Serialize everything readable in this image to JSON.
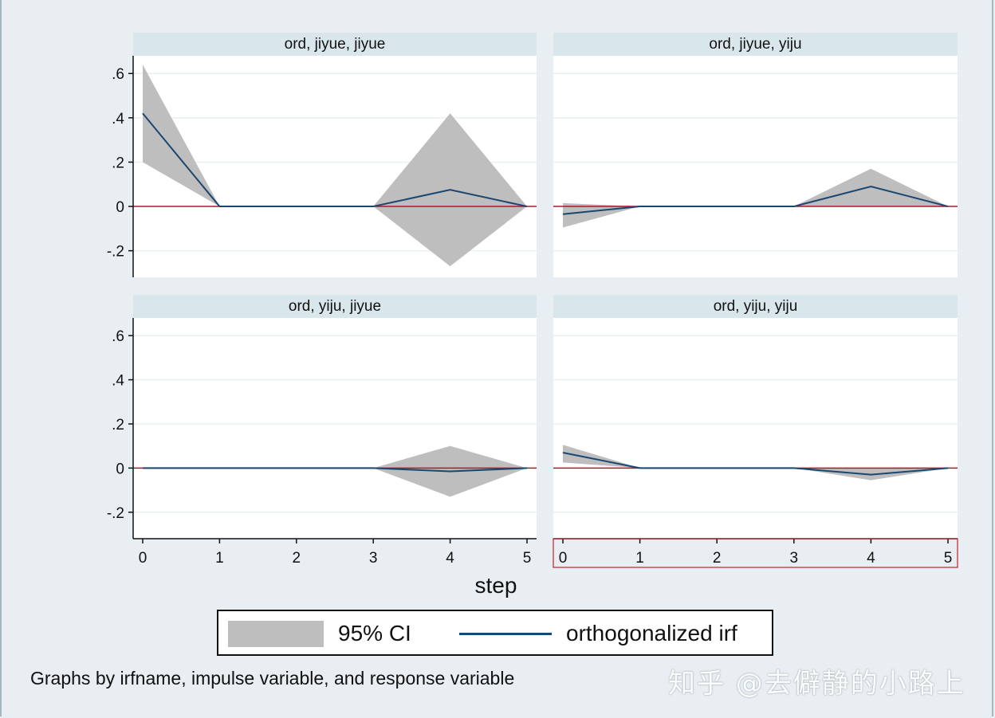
{
  "chart_data": {
    "type": "line",
    "layout": "2x2 panels",
    "xlabel": "step",
    "x": [
      0,
      1,
      2,
      3,
      4,
      5
    ],
    "ylim": [
      -0.32,
      0.68
    ],
    "yticks": [
      -0.2,
      0,
      0.2,
      0.4,
      0.6
    ],
    "ytick_labels": [
      "-.2",
      "0",
      ".2",
      ".4",
      ".6"
    ],
    "legend": {
      "placement": "bottom",
      "items": [
        "95% CI",
        "orthogonalized irf"
      ]
    },
    "note": "Graphs by irfname, impulse variable, and response variable",
    "colors": {
      "ci": "#bebebe",
      "irf": "#1a476f",
      "zero_line": "#b2162e",
      "strip": "#d9e6eb",
      "background": "#e8eef1"
    },
    "panels": [
      {
        "title": "ord, jiyue, jiyue",
        "irf": [
          0.42,
          0,
          0,
          0,
          0.075,
          0
        ],
        "lower": [
          0.2,
          0,
          0,
          0,
          -0.27,
          0
        ],
        "upper": [
          0.64,
          0,
          0,
          0,
          0.42,
          0
        ]
      },
      {
        "title": "ord, jiyue, yiju",
        "irf": [
          -0.035,
          0,
          0,
          0,
          0.09,
          0
        ],
        "lower": [
          -0.095,
          0,
          0,
          0,
          0.0,
          0
        ],
        "upper": [
          0.015,
          0,
          0,
          0,
          0.17,
          0
        ]
      },
      {
        "title": "ord, yiju, jiyue",
        "irf": [
          0,
          0,
          0,
          0,
          -0.015,
          0
        ],
        "lower": [
          0,
          0,
          0,
          0,
          -0.13,
          0
        ],
        "upper": [
          0,
          0,
          0,
          0,
          0.1,
          0
        ]
      },
      {
        "title": "ord, yiju, yiju",
        "irf": [
          0.07,
          0,
          0,
          0,
          -0.03,
          0
        ],
        "lower": [
          0.025,
          0,
          0,
          0,
          -0.055,
          0
        ],
        "upper": [
          0.105,
          0,
          0,
          0,
          0.0,
          0
        ]
      }
    ]
  },
  "watermark": "知乎 @去僻静的小路上"
}
